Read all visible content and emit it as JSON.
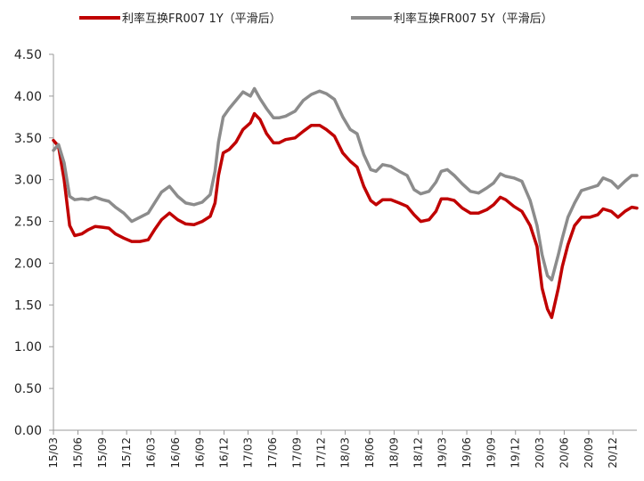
{
  "chart_data": {
    "type": "line",
    "title": "",
    "xlabel": "",
    "ylabel": "",
    "ylim": [
      0,
      4.5
    ],
    "y_ticks": [
      "0.00",
      "0.50",
      "1.00",
      "1.50",
      "2.00",
      "2.50",
      "3.00",
      "3.50",
      "4.00",
      "4.50"
    ],
    "x_start": "2015-03",
    "x_end": "2021-03",
    "x_ticks": [
      "15/03",
      "15/06",
      "15/09",
      "15/12",
      "16/03",
      "16/06",
      "16/09",
      "16/12",
      "17/03",
      "17/06",
      "17/09",
      "17/12",
      "18/03",
      "18/06",
      "18/09",
      "18/12",
      "19/03",
      "19/06",
      "19/09",
      "19/12",
      "20/03",
      "20/06",
      "20/09",
      "20/12"
    ],
    "grid": false,
    "legend_position": "top",
    "series": [
      {
        "name": "利率互换FR007 1Y（平滑后）",
        "color": "#c00000",
        "points": [
          [
            "2015-03-01",
            3.47
          ],
          [
            "2015-03-20",
            3.4
          ],
          [
            "2015-04-10",
            3.0
          ],
          [
            "2015-05-01",
            2.45
          ],
          [
            "2015-05-20",
            2.33
          ],
          [
            "2015-06-15",
            2.35
          ],
          [
            "2015-07-10",
            2.4
          ],
          [
            "2015-08-05",
            2.44
          ],
          [
            "2015-09-01",
            2.43
          ],
          [
            "2015-09-25",
            2.42
          ],
          [
            "2015-10-20",
            2.35
          ],
          [
            "2015-11-20",
            2.3
          ],
          [
            "2015-12-20",
            2.26
          ],
          [
            "2016-01-20",
            2.26
          ],
          [
            "2016-02-20",
            2.28
          ],
          [
            "2016-03-15",
            2.4
          ],
          [
            "2016-04-10",
            2.52
          ],
          [
            "2016-05-10",
            2.6
          ],
          [
            "2016-06-10",
            2.52
          ],
          [
            "2016-07-10",
            2.47
          ],
          [
            "2016-08-10",
            2.46
          ],
          [
            "2016-09-10",
            2.5
          ],
          [
            "2016-10-10",
            2.56
          ],
          [
            "2016-10-28",
            2.72
          ],
          [
            "2016-11-10",
            3.05
          ],
          [
            "2016-11-28",
            3.32
          ],
          [
            "2016-12-20",
            3.36
          ],
          [
            "2017-01-15",
            3.45
          ],
          [
            "2017-02-10",
            3.6
          ],
          [
            "2017-03-10",
            3.68
          ],
          [
            "2017-03-25",
            3.79
          ],
          [
            "2017-04-15",
            3.72
          ],
          [
            "2017-05-10",
            3.55
          ],
          [
            "2017-06-05",
            3.44
          ],
          [
            "2017-06-25",
            3.44
          ],
          [
            "2017-07-20",
            3.48
          ],
          [
            "2017-08-25",
            3.5
          ],
          [
            "2017-09-25",
            3.58
          ],
          [
            "2017-10-25",
            3.65
          ],
          [
            "2017-11-25",
            3.65
          ],
          [
            "2017-12-20",
            3.6
          ],
          [
            "2018-01-20",
            3.52
          ],
          [
            "2018-02-20",
            3.32
          ],
          [
            "2018-03-20",
            3.22
          ],
          [
            "2018-04-15",
            3.15
          ],
          [
            "2018-05-10",
            2.92
          ],
          [
            "2018-06-05",
            2.75
          ],
          [
            "2018-06-25",
            2.7
          ],
          [
            "2018-07-20",
            2.76
          ],
          [
            "2018-08-20",
            2.76
          ],
          [
            "2018-09-20",
            2.72
          ],
          [
            "2018-10-20",
            2.68
          ],
          [
            "2018-11-15",
            2.58
          ],
          [
            "2018-12-10",
            2.5
          ],
          [
            "2019-01-10",
            2.52
          ],
          [
            "2019-02-05",
            2.62
          ],
          [
            "2019-02-25",
            2.77
          ],
          [
            "2019-03-20",
            2.77
          ],
          [
            "2019-04-15",
            2.75
          ],
          [
            "2019-05-15",
            2.66
          ],
          [
            "2019-06-15",
            2.6
          ],
          [
            "2019-07-15",
            2.6
          ],
          [
            "2019-08-15",
            2.64
          ],
          [
            "2019-09-10",
            2.7
          ],
          [
            "2019-10-05",
            2.79
          ],
          [
            "2019-10-25",
            2.76
          ],
          [
            "2019-11-25",
            2.68
          ],
          [
            "2019-12-25",
            2.62
          ],
          [
            "2020-01-25",
            2.45
          ],
          [
            "2020-02-20",
            2.2
          ],
          [
            "2020-03-10",
            1.7
          ],
          [
            "2020-03-30",
            1.45
          ],
          [
            "2020-04-15",
            1.35
          ],
          [
            "2020-05-10",
            1.7
          ],
          [
            "2020-05-25",
            1.96
          ],
          [
            "2020-06-15",
            2.22
          ],
          [
            "2020-07-10",
            2.45
          ],
          [
            "2020-08-05",
            2.55
          ],
          [
            "2020-09-05",
            2.55
          ],
          [
            "2020-10-05",
            2.58
          ],
          [
            "2020-10-25",
            2.65
          ],
          [
            "2020-11-25",
            2.62
          ],
          [
            "2020-12-20",
            2.55
          ],
          [
            "2021-01-15",
            2.62
          ],
          [
            "2021-02-10",
            2.67
          ],
          [
            "2021-03-01",
            2.66
          ]
        ]
      },
      {
        "name": "利率互换FR007 5Y（平滑后）",
        "color": "#8c8c8c",
        "points": [
          [
            "2015-03-01",
            3.35
          ],
          [
            "2015-03-20",
            3.42
          ],
          [
            "2015-04-10",
            3.2
          ],
          [
            "2015-05-01",
            2.8
          ],
          [
            "2015-05-20",
            2.76
          ],
          [
            "2015-06-15",
            2.77
          ],
          [
            "2015-07-10",
            2.76
          ],
          [
            "2015-08-05",
            2.79
          ],
          [
            "2015-09-01",
            2.76
          ],
          [
            "2015-09-25",
            2.74
          ],
          [
            "2015-10-20",
            2.67
          ],
          [
            "2015-11-20",
            2.6
          ],
          [
            "2015-12-20",
            2.5
          ],
          [
            "2016-01-20",
            2.55
          ],
          [
            "2016-02-20",
            2.6
          ],
          [
            "2016-03-15",
            2.72
          ],
          [
            "2016-04-10",
            2.85
          ],
          [
            "2016-05-10",
            2.92
          ],
          [
            "2016-06-10",
            2.8
          ],
          [
            "2016-07-10",
            2.72
          ],
          [
            "2016-08-10",
            2.7
          ],
          [
            "2016-09-10",
            2.73
          ],
          [
            "2016-10-10",
            2.82
          ],
          [
            "2016-10-28",
            3.1
          ],
          [
            "2016-11-10",
            3.45
          ],
          [
            "2016-11-28",
            3.75
          ],
          [
            "2016-12-20",
            3.85
          ],
          [
            "2017-01-15",
            3.95
          ],
          [
            "2017-02-10",
            4.05
          ],
          [
            "2017-03-10",
            4.0
          ],
          [
            "2017-03-25",
            4.09
          ],
          [
            "2017-04-15",
            3.97
          ],
          [
            "2017-05-10",
            3.85
          ],
          [
            "2017-06-05",
            3.74
          ],
          [
            "2017-06-25",
            3.74
          ],
          [
            "2017-07-20",
            3.76
          ],
          [
            "2017-08-25",
            3.82
          ],
          [
            "2017-09-25",
            3.95
          ],
          [
            "2017-10-25",
            4.02
          ],
          [
            "2017-11-25",
            4.06
          ],
          [
            "2017-12-20",
            4.03
          ],
          [
            "2018-01-20",
            3.96
          ],
          [
            "2018-02-20",
            3.75
          ],
          [
            "2018-03-20",
            3.6
          ],
          [
            "2018-04-15",
            3.55
          ],
          [
            "2018-05-10",
            3.3
          ],
          [
            "2018-06-05",
            3.12
          ],
          [
            "2018-06-25",
            3.1
          ],
          [
            "2018-07-20",
            3.18
          ],
          [
            "2018-08-20",
            3.16
          ],
          [
            "2018-09-20",
            3.1
          ],
          [
            "2018-10-20",
            3.05
          ],
          [
            "2018-11-15",
            2.88
          ],
          [
            "2018-12-10",
            2.83
          ],
          [
            "2019-01-10",
            2.86
          ],
          [
            "2019-02-05",
            2.97
          ],
          [
            "2019-02-25",
            3.1
          ],
          [
            "2019-03-20",
            3.12
          ],
          [
            "2019-04-15",
            3.05
          ],
          [
            "2019-05-15",
            2.95
          ],
          [
            "2019-06-15",
            2.86
          ],
          [
            "2019-07-15",
            2.84
          ],
          [
            "2019-08-15",
            2.9
          ],
          [
            "2019-09-10",
            2.96
          ],
          [
            "2019-10-05",
            3.07
          ],
          [
            "2019-10-25",
            3.04
          ],
          [
            "2019-11-25",
            3.02
          ],
          [
            "2019-12-25",
            2.98
          ],
          [
            "2020-01-25",
            2.75
          ],
          [
            "2020-02-20",
            2.45
          ],
          [
            "2020-03-10",
            2.1
          ],
          [
            "2020-03-30",
            1.85
          ],
          [
            "2020-04-15",
            1.8
          ],
          [
            "2020-05-10",
            2.1
          ],
          [
            "2020-05-25",
            2.3
          ],
          [
            "2020-06-15",
            2.55
          ],
          [
            "2020-07-10",
            2.72
          ],
          [
            "2020-08-05",
            2.87
          ],
          [
            "2020-09-05",
            2.9
          ],
          [
            "2020-10-05",
            2.93
          ],
          [
            "2020-10-25",
            3.02
          ],
          [
            "2020-11-25",
            2.98
          ],
          [
            "2020-12-20",
            2.9
          ],
          [
            "2021-01-15",
            2.98
          ],
          [
            "2021-02-10",
            3.05
          ],
          [
            "2021-03-01",
            3.05
          ]
        ]
      }
    ]
  }
}
